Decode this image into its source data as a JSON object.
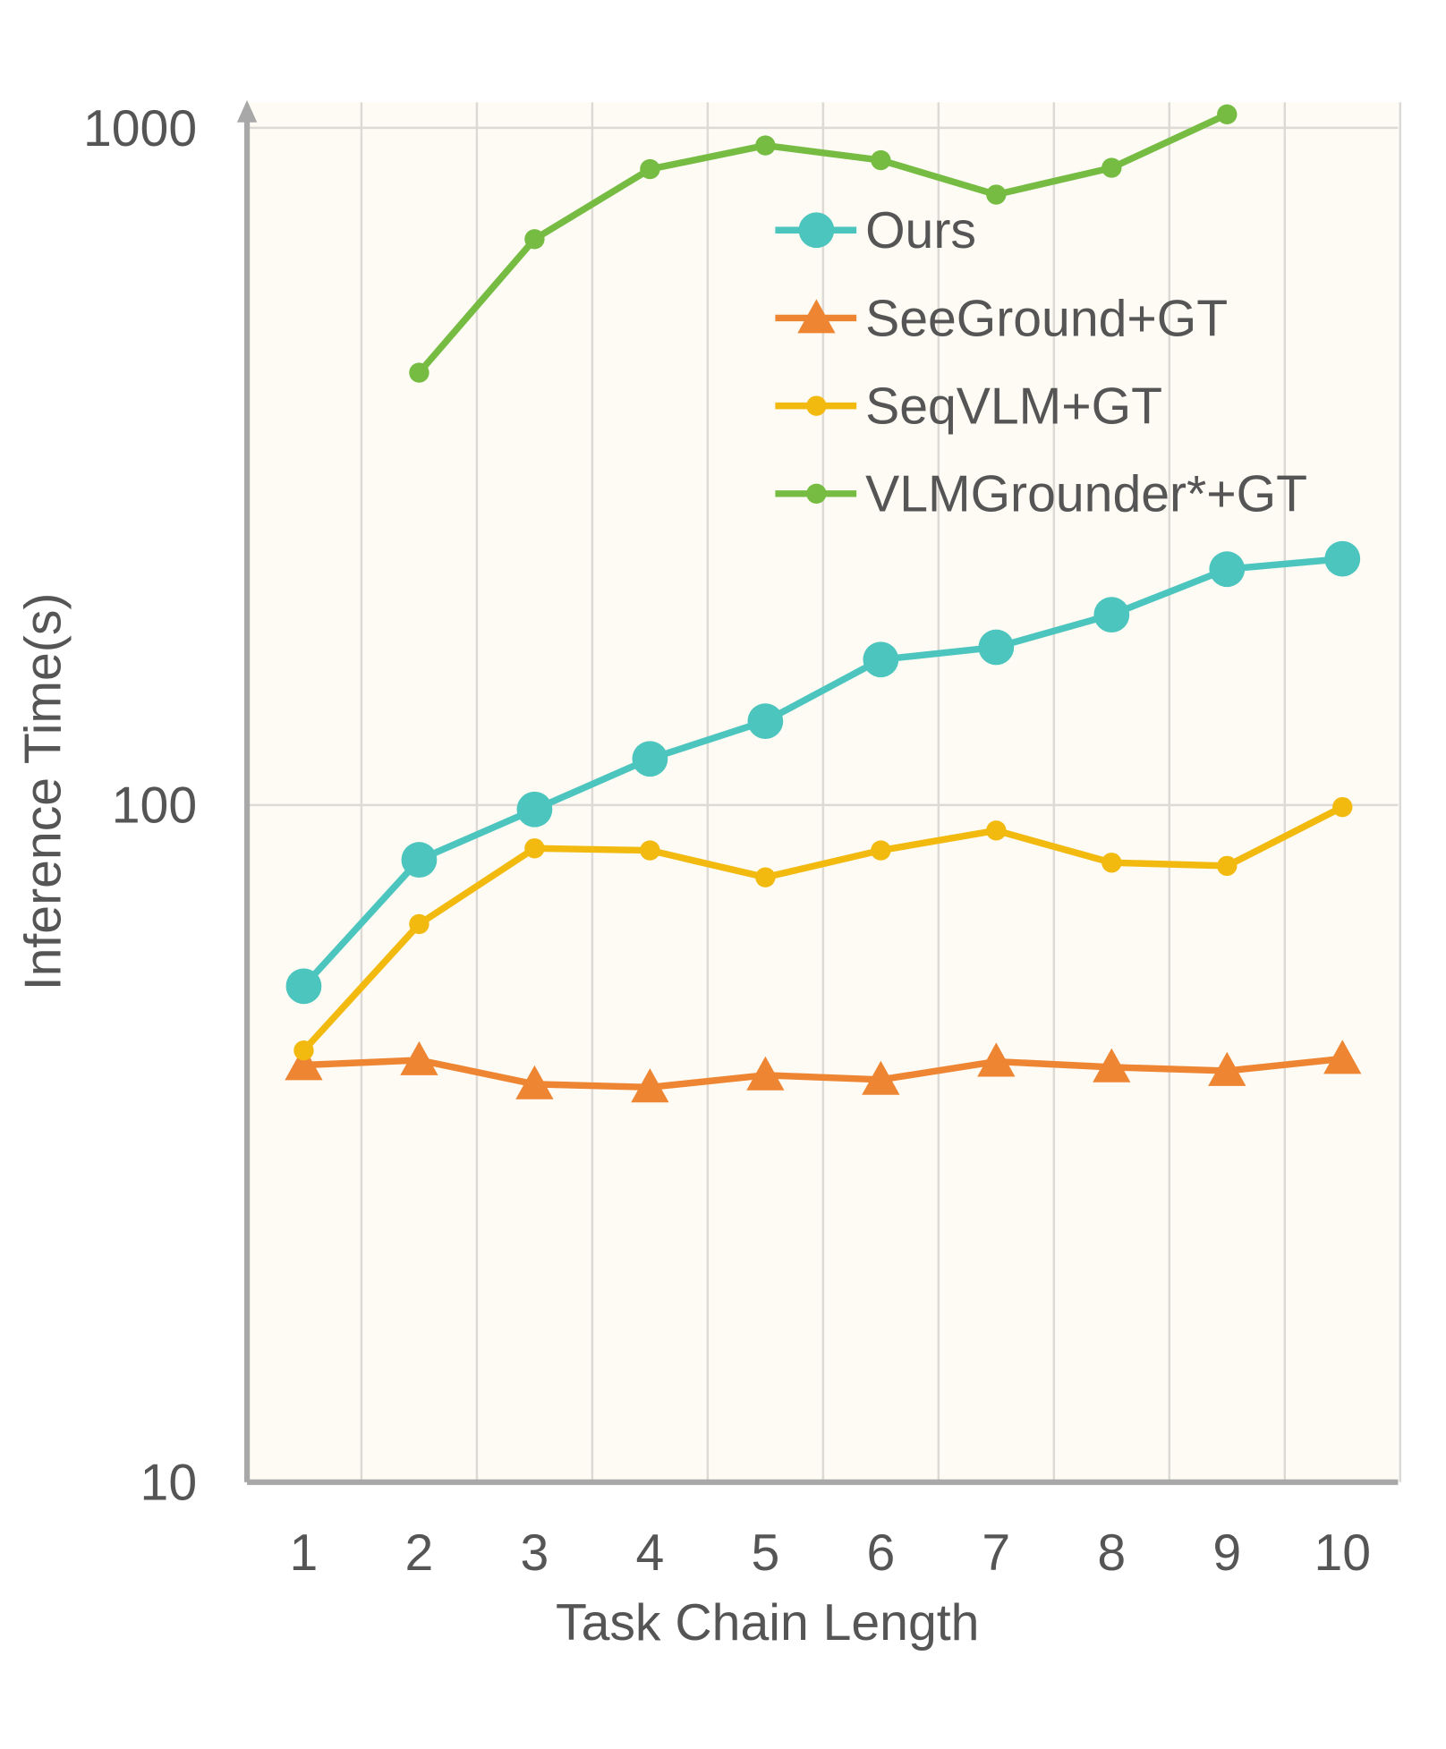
{
  "chart_data": {
    "type": "line",
    "title": "",
    "xlabel": "Task Chain Length",
    "ylabel": "Inference Time(s)",
    "yscale": "log",
    "ylim": [
      10,
      1000
    ],
    "yticks": [
      "10",
      "100",
      "1000"
    ],
    "x": [
      1,
      2,
      3,
      4,
      5,
      6,
      7,
      8,
      9,
      10
    ],
    "xtick_labels": [
      "1",
      "2",
      "3",
      "4",
      "5",
      "6",
      "7",
      "8",
      "9",
      "10"
    ],
    "grid": true,
    "legend_position": "top-right",
    "background_color": "#FDFBF3",
    "series": [
      {
        "name": "Ours",
        "color": "#4BC5BE",
        "marker": "circle-large",
        "values": [
          54,
          83,
          98.5,
          117,
          133,
          164,
          171,
          191,
          223,
          231
        ]
      },
      {
        "name": "SeeGround+GT",
        "color": "#EE8533",
        "marker": "triangle",
        "values": [
          41.3,
          42,
          38.7,
          38.3,
          39.9,
          39.3,
          41.8,
          41,
          40.5,
          42.2
        ]
      },
      {
        "name": "SeqVLM+GT",
        "color": "#F2B90F",
        "marker": "circle-small",
        "values": [
          43.4,
          66.7,
          86.3,
          85.7,
          78.2,
          85.7,
          91.7,
          82.2,
          81.3,
          99.3
        ]
      },
      {
        "name": "VLMGrounder*+GT",
        "color": "#76BC43",
        "marker": "circle-small",
        "values": [
          null,
          435,
          685,
          869,
          942,
          896,
          797,
          873,
          1047,
          null
        ]
      }
    ]
  }
}
